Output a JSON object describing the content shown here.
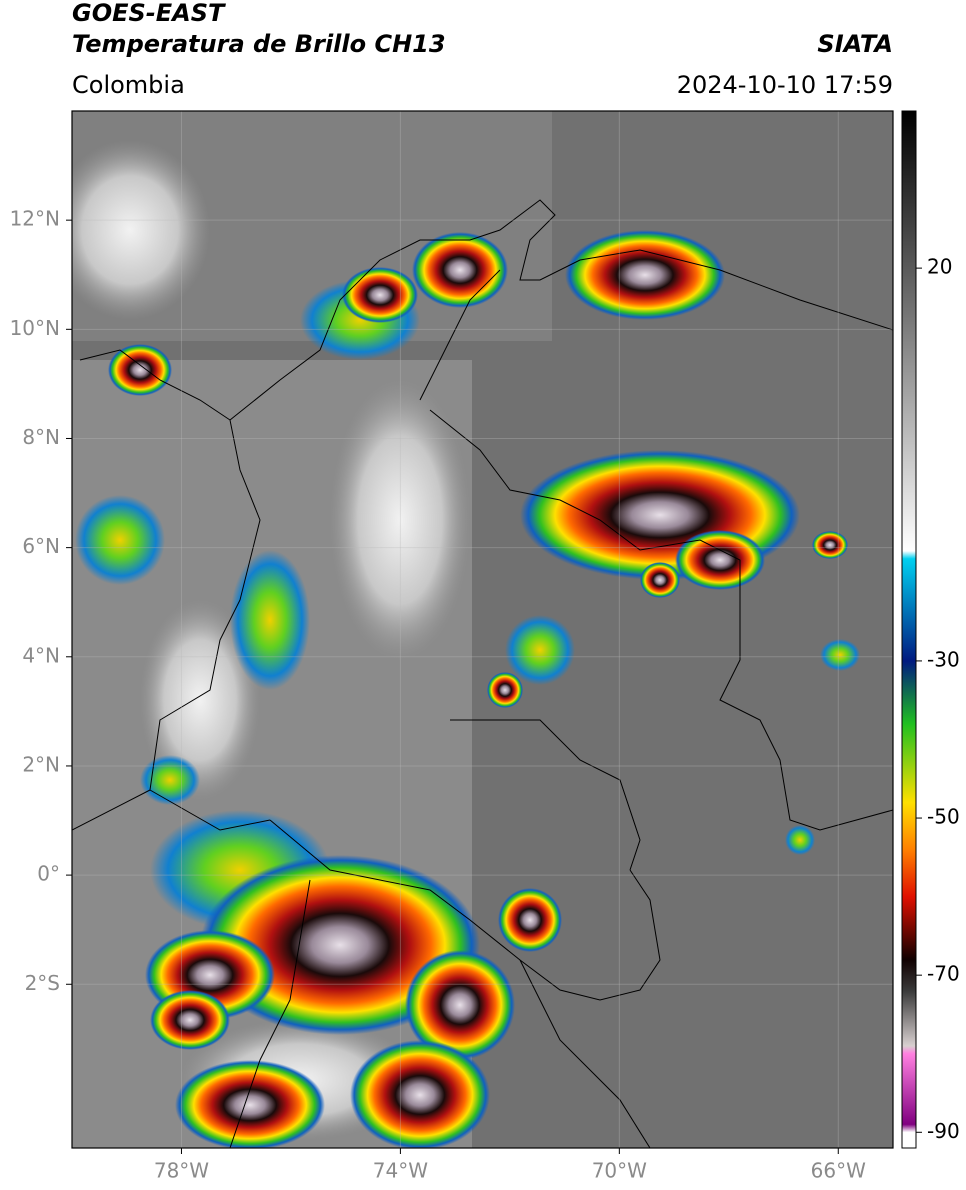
{
  "header": {
    "title": "GOES-EAST",
    "subtitle": "Temperatura de Brillo CH13",
    "source": "SIATA",
    "region": "Colombia",
    "timestamp": "2024-10-10 17:59"
  },
  "map": {
    "xlim": [
      -80,
      -65
    ],
    "ylim": [
      -5,
      14
    ],
    "grid": true,
    "xticks": [
      {
        "value": -78,
        "label": "78°W"
      },
      {
        "value": -74,
        "label": "74°W"
      },
      {
        "value": -70,
        "label": "70°W"
      },
      {
        "value": -66,
        "label": "66°W"
      }
    ],
    "yticks": [
      {
        "value": 12,
        "label": "12°N"
      },
      {
        "value": 10,
        "label": "10°N"
      },
      {
        "value": 8,
        "label": "8°N"
      },
      {
        "value": 6,
        "label": "6°N"
      },
      {
        "value": 4,
        "label": "4°N"
      },
      {
        "value": 2,
        "label": "2°N"
      },
      {
        "value": 0,
        "label": "0°"
      },
      {
        "value": -2,
        "label": "2°S"
      }
    ]
  },
  "colorbar": {
    "lim": [
      -92,
      40
    ],
    "ticks": [
      20,
      -30,
      -50,
      -70,
      -90
    ],
    "colors": [
      [
        40,
        "#000000"
      ],
      [
        20,
        "#5a5a5a"
      ],
      [
        -16,
        "#ffffff"
      ],
      [
        -17,
        "#00d0f0"
      ],
      [
        -30,
        "#001a80"
      ],
      [
        -38,
        "#20c020"
      ],
      [
        -48,
        "#ffe000"
      ],
      [
        -54,
        "#ff8000"
      ],
      [
        -60,
        "#e01000"
      ],
      [
        -68,
        "#100000"
      ],
      [
        -72,
        "#3a3a3a"
      ],
      [
        -79,
        "#d8d0d0"
      ],
      [
        -80,
        "#ff80e0"
      ],
      [
        -89,
        "#800080"
      ],
      [
        -90,
        "#ffffff"
      ],
      [
        -92,
        "#ffffff"
      ]
    ]
  }
}
